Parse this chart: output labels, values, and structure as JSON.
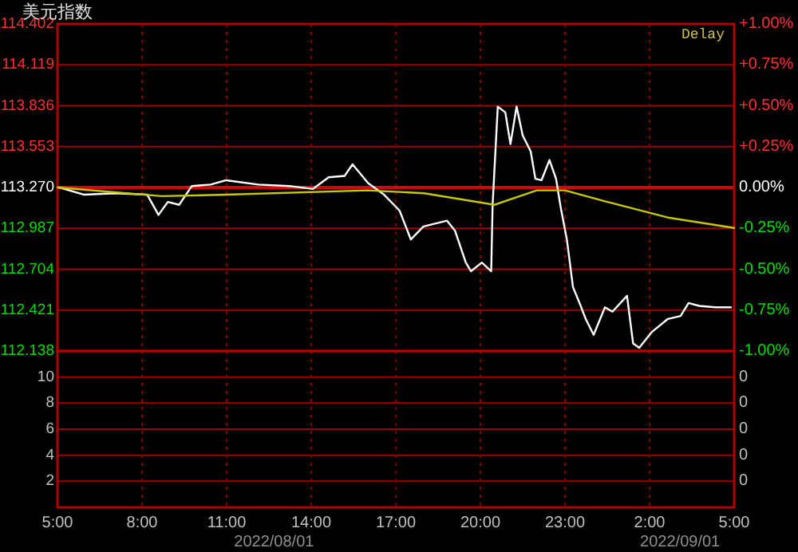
{
  "chart_data": [
    {
      "type": "line",
      "title": "美元指数",
      "annotations": [
        "Delay"
      ],
      "xlim": [
        "2022-08-01T05:00",
        "2022-08-02T05:00"
      ],
      "xticks": [
        "2022-08-01T05:00",
        "2022-08-01T08:00",
        "2022-08-01T11:00",
        "2022-08-01T14:00",
        "2022-08-01T17:00",
        "2022-08-01T20:00",
        "2022-08-01T23:00",
        "2022-08-02T02:00",
        "2022-08-02T05:00"
      ],
      "ylim": [
        112.138,
        114.402
      ],
      "yticks": [
        {
          "value": 112.138,
          "label": "112.138"
        },
        {
          "value": 112.421,
          "label": "112.421"
        },
        {
          "value": 112.704,
          "label": "112.704"
        },
        {
          "value": 112.987,
          "label": "112.987"
        },
        {
          "value": 113.27,
          "label": "113.270"
        },
        {
          "value": 113.553,
          "label": "113.553"
        },
        {
          "value": 113.836,
          "label": "113.836"
        },
        {
          "value": 114.119,
          "label": "114.119"
        },
        {
          "value": 114.402,
          "label": "114.402"
        }
      ],
      "y2lim": [
        -1,
        1
      ],
      "y2ticks": [
        {
          "value": -1,
          "label": "-1.00%"
        },
        {
          "value": -0.75,
          "label": "-0.75%"
        },
        {
          "value": -0.5,
          "label": "-0.50%"
        },
        {
          "value": -0.25,
          "label": "-0.25%"
        },
        {
          "value": 0,
          "label": "0.00%"
        },
        {
          "value": 0.25,
          "label": "+0.25%"
        },
        {
          "value": 0.5,
          "label": "+0.50%"
        },
        {
          "value": 0.75,
          "label": "+0.75%"
        },
        {
          "value": 1,
          "label": "+1.00%"
        }
      ],
      "tick_labels": "y",
      "grid": true,
      "ref_lines": [
        {
          "axis": "y",
          "value": 113.27,
          "color": "#dd0000"
        }
      ],
      "series": [
        {
          "color": "#ffffff",
          "x": [
            "2022-08-01T05:04",
            "2022-08-01T05:57",
            "2022-08-01T07:04",
            "2022-08-01T08:11",
            "2022-08-01T08:35",
            "2022-08-01T08:55",
            "2022-08-01T09:19",
            "2022-08-01T09:46",
            "2022-08-01T10:26",
            "2022-08-01T10:59",
            "2022-08-01T12:07",
            "2022-08-01T13:13",
            "2022-08-01T14:04",
            "2022-08-01T14:37",
            "2022-08-01T15:11",
            "2022-08-01T15:28",
            "2022-08-01T16:01",
            "2022-08-01T16:35",
            "2022-08-01T17:08",
            "2022-08-01T17:32",
            "2022-08-01T17:59",
            "2022-08-01T18:49",
            "2022-08-01T19:06",
            "2022-08-01T19:29",
            "2022-08-01T19:40",
            "2022-08-01T20:03",
            "2022-08-01T20:23",
            "2022-08-01T20:26",
            "2022-08-01T20:37",
            "2022-08-01T20:53",
            "2022-08-01T21:04",
            "2022-08-01T21:17",
            "2022-08-01T21:30",
            "2022-08-01T21:47",
            "2022-08-01T21:57",
            "2022-08-01T22:10",
            "2022-08-01T22:27",
            "2022-08-01T22:41",
            "2022-08-01T22:51",
            "2022-08-01T23:04",
            "2022-08-01T23:17",
            "2022-08-01T23:31",
            "2022-08-01T23:44",
            "2022-08-02T00:01",
            "2022-08-02T00:25",
            "2022-08-02T00:41",
            "2022-08-02T01:12",
            "2022-08-02T01:25",
            "2022-08-02T01:38",
            "2022-08-02T02:05",
            "2022-08-02T02:39",
            "2022-08-02T03:06",
            "2022-08-02T03:23",
            "2022-08-02T03:46",
            "2022-08-02T04:20",
            "2022-08-02T04:53"
          ],
          "values": [
            113.27,
            113.22,
            113.23,
            113.22,
            113.08,
            113.17,
            113.15,
            113.28,
            113.29,
            113.32,
            113.29,
            113.28,
            113.26,
            113.34,
            113.35,
            113.43,
            113.3,
            113.22,
            113.11,
            112.91,
            113.0,
            113.04,
            112.97,
            112.75,
            112.69,
            112.75,
            112.69,
            113.15,
            113.83,
            113.79,
            113.57,
            113.83,
            113.63,
            113.52,
            113.33,
            113.32,
            113.46,
            113.33,
            113.13,
            112.91,
            112.58,
            112.47,
            112.36,
            112.25,
            112.44,
            112.41,
            112.52,
            112.19,
            112.16,
            112.27,
            112.36,
            112.38,
            112.47,
            112.45,
            112.44,
            112.44
          ]
        },
        {
          "color": "#c8c800",
          "x": [
            "2022-08-01T05:00",
            "2022-08-01T08:42",
            "2022-08-01T11:00",
            "2022-08-01T16:00",
            "2022-08-01T18:00",
            "2022-08-01T20:30",
            "2022-08-01T22:00",
            "2022-08-01T23:00",
            "2022-08-02T00:30",
            "2022-08-02T02:42",
            "2022-08-02T05:00"
          ],
          "values": [
            113.27,
            113.21,
            113.22,
            113.25,
            113.23,
            113.15,
            113.25,
            113.25,
            113.17,
            113.06,
            112.99
          ]
        }
      ]
    },
    {
      "type": "bar",
      "annotations": [
        "2022/08/01",
        "2022/09/01",
        "0",
        "0",
        "0",
        "0",
        "0"
      ],
      "xlim": [
        "2022-08-01T05:00",
        "2022-08-02T05:00"
      ],
      "xticks": [
        {
          "value": "2022-08-01T05:00",
          "label": "5:00"
        },
        {
          "value": "2022-08-01T08:00",
          "label": "8:00"
        },
        {
          "value": "2022-08-01T11:00",
          "label": "11:00"
        },
        {
          "value": "2022-08-01T14:00",
          "label": "14:00"
        },
        {
          "value": "2022-08-01T17:00",
          "label": "17:00"
        },
        {
          "value": "2022-08-01T20:00",
          "label": "20:00"
        },
        {
          "value": "2022-08-01T23:00",
          "label": "23:00"
        },
        {
          "value": "2022-08-02T02:00",
          "label": "2:00"
        },
        {
          "value": "2022-08-02T05:00",
          "label": "5:00"
        }
      ],
      "ylim": [
        0,
        12
      ],
      "yticks": [
        2,
        4,
        6,
        8,
        10
      ],
      "grid": true
    }
  ]
}
